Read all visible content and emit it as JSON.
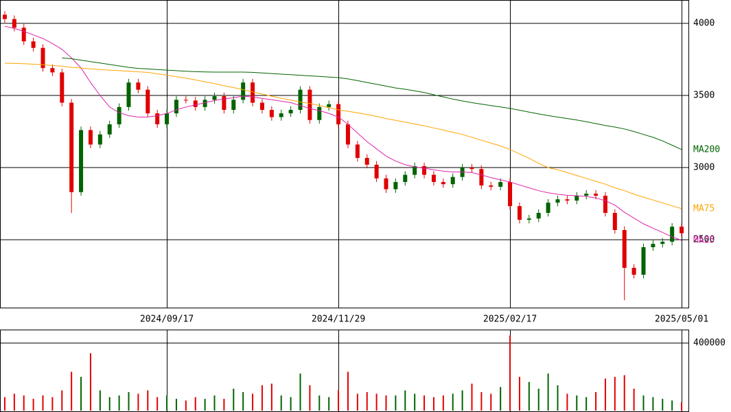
{
  "chart_data": {
    "type": "candlestick",
    "categories": [
      null,
      null,
      null,
      null,
      null,
      null,
      null,
      null,
      null,
      null,
      null,
      null,
      null,
      null,
      null,
      null,
      null,
      "2024/09/17",
      null,
      null,
      null,
      null,
      null,
      null,
      null,
      null,
      null,
      null,
      null,
      null,
      null,
      null,
      null,
      null,
      null,
      "2024/11/29",
      null,
      null,
      null,
      null,
      null,
      null,
      null,
      null,
      null,
      null,
      null,
      null,
      null,
      null,
      null,
      null,
      null,
      "2025/02/17",
      null,
      null,
      null,
      null,
      null,
      null,
      null,
      null,
      null,
      null,
      null,
      null,
      null,
      null,
      null,
      null,
      null,
      "2025/05/01"
    ],
    "open": [
      4060,
      4030,
      3970,
      3875,
      3830,
      3690,
      3660,
      3450,
      2830,
      3260,
      3160,
      3230,
      3300,
      3420,
      3590,
      3540,
      3376,
      3300,
      3376,
      3470,
      3465,
      3420,
      3470,
      3495,
      3400,
      3470,
      3590,
      3450,
      3400,
      3350,
      3376,
      3400,
      3540,
      3330,
      3420,
      3440,
      3300,
      3160,
      3067,
      3020,
      2925,
      2850,
      2900,
      2950,
      3010,
      2950,
      2900,
      2885,
      2935,
      3000,
      2990,
      2876,
      2867,
      2900,
      2733,
      2638,
      2647,
      2686,
      2757,
      2780,
      2771,
      2805,
      2819,
      2805,
      2686,
      2567,
      2305,
      2257,
      2448,
      2471,
      2486,
      2590
    ],
    "high": [
      4085,
      4055,
      3995,
      3900,
      3855,
      3715,
      3685,
      3475,
      3285,
      3285,
      3255,
      3325,
      3445,
      3615,
      3615,
      3565,
      3401,
      3401,
      3495,
      3495,
      3490,
      3495,
      3520,
      3520,
      3495,
      3615,
      3615,
      3475,
      3425,
      3401,
      3425,
      3565,
      3565,
      3445,
      3465,
      3465,
      3325,
      3185,
      3092,
      3045,
      2950,
      2925,
      2975,
      3035,
      3035,
      2975,
      2925,
      2960,
      3025,
      3025,
      3015,
      2901,
      2925,
      2925,
      2758,
      2672,
      2711,
      2782,
      2805,
      2805,
      2830,
      2844,
      2844,
      2830,
      2711,
      2592,
      2330,
      2473,
      2496,
      2511,
      2615,
      2615
    ],
    "low": [
      4005,
      3945,
      3850,
      3805,
      3665,
      3635,
      3425,
      2685,
      2805,
      3135,
      3135,
      3205,
      3275,
      3395,
      3515,
      3351,
      3275,
      3275,
      3351,
      3445,
      3395,
      3395,
      3445,
      3375,
      3375,
      3445,
      3425,
      3375,
      3325,
      3325,
      3351,
      3375,
      3305,
      3305,
      3395,
      3275,
      3135,
      3042,
      2995,
      2900,
      2825,
      2825,
      2875,
      2925,
      2925,
      2875,
      2860,
      2860,
      2910,
      2965,
      2851,
      2842,
      2842,
      2708,
      2613,
      2613,
      2622,
      2661,
      2732,
      2746,
      2746,
      2780,
      2780,
      2661,
      2542,
      2080,
      2232,
      2232,
      2423,
      2446,
      2461,
      2520
    ],
    "close": [
      4030,
      3970,
      3875,
      3830,
      3690,
      3660,
      3450,
      2830,
      3260,
      3160,
      3230,
      3300,
      3420,
      3590,
      3540,
      3376,
      3300,
      3376,
      3470,
      3465,
      3420,
      3470,
      3495,
      3400,
      3470,
      3590,
      3450,
      3400,
      3350,
      3376,
      3400,
      3540,
      3330,
      3420,
      3440,
      3300,
      3160,
      3067,
      3020,
      2925,
      2850,
      2900,
      2950,
      3010,
      2950,
      2900,
      2885,
      2935,
      3000,
      2990,
      2876,
      2867,
      2900,
      2733,
      2638,
      2647,
      2686,
      2757,
      2780,
      2771,
      2805,
      2819,
      2805,
      2686,
      2567,
      2305,
      2257,
      2448,
      2471,
      2486,
      2590,
      2545
    ],
    "volume": [
      80000,
      100000,
      90000,
      70000,
      90000,
      80000,
      120000,
      230000,
      200000,
      340000,
      120000,
      80000,
      90000,
      110000,
      100000,
      120000,
      80000,
      90000,
      70000,
      60000,
      80000,
      70000,
      90000,
      70000,
      130000,
      110000,
      100000,
      150000,
      160000,
      90000,
      80000,
      220000,
      150000,
      90000,
      80000,
      120000,
      230000,
      100000,
      110000,
      100000,
      90000,
      90000,
      120000,
      100000,
      90000,
      80000,
      90000,
      100000,
      120000,
      160000,
      110000,
      100000,
      140000,
      445000,
      200000,
      170000,
      130000,
      220000,
      150000,
      100000,
      90000,
      80000,
      110000,
      190000,
      200000,
      210000,
      130000,
      90000,
      80000,
      70000,
      60000,
      50000
    ],
    "up_color": "#006400",
    "down_color": "#e00000",
    "ylim": [
      2029,
      4162
    ],
    "yticks": [
      2500,
      3000,
      3500,
      4000
    ],
    "volume_ylim": [
      0,
      480000
    ],
    "volume_yticks": [
      400000
    ],
    "series": [
      {
        "name": "MA25",
        "color": "#dd22aa",
        "values": [
          3980,
          3965,
          3945,
          3920,
          3895,
          3860,
          3820,
          3760,
          3690,
          3590,
          3500,
          3420,
          3380,
          3360,
          3350,
          3350,
          3360,
          3375,
          3400,
          3420,
          3435,
          3450,
          3465,
          3475,
          3485,
          3495,
          3490,
          3480,
          3470,
          3460,
          3450,
          3430,
          3410,
          3395,
          3376,
          3350,
          3300,
          3240,
          3180,
          3130,
          3080,
          3045,
          3020,
          3005,
          2995,
          2985,
          2975,
          2970,
          2970,
          2965,
          2950,
          2930,
          2915,
          2900,
          2880,
          2860,
          2840,
          2825,
          2815,
          2808,
          2805,
          2800,
          2790,
          2770,
          2740,
          2690,
          2650,
          2610,
          2580,
          2550,
          2520,
          2495
        ]
      },
      {
        "name": "MA75",
        "color": "#ffa500",
        "values": [
          3724,
          3722,
          3720,
          3717,
          3713,
          3708,
          3703,
          3695,
          3690,
          3685,
          3680,
          3676,
          3672,
          3668,
          3664,
          3660,
          3650,
          3640,
          3630,
          3620,
          3608,
          3595,
          3582,
          3568,
          3555,
          3540,
          3525,
          3510,
          3495,
          3480,
          3468,
          3455,
          3445,
          3430,
          3415,
          3400,
          3390,
          3380,
          3368,
          3355,
          3340,
          3328,
          3315,
          3302,
          3290,
          3275,
          3260,
          3245,
          3230,
          3210,
          3190,
          3170,
          3150,
          3125,
          3095,
          3065,
          3030,
          3000,
          2985,
          2965,
          2945,
          2925,
          2905,
          2885,
          2860,
          2840,
          2815,
          2795,
          2775,
          2755,
          2735,
          2715
        ]
      },
      {
        "name": "MA200",
        "color": "#006400",
        "values": [
          null,
          null,
          null,
          null,
          null,
          null,
          3760,
          3755,
          3745,
          3735,
          3725,
          3715,
          3705,
          3695,
          3688,
          3684,
          3680,
          3676,
          3672,
          3668,
          3665,
          3663,
          3662,
          3662,
          3662,
          3662,
          3660,
          3656,
          3652,
          3648,
          3644,
          3640,
          3636,
          3632,
          3628,
          3624,
          3615,
          3603,
          3590,
          3578,
          3565,
          3552,
          3543,
          3532,
          3520,
          3505,
          3490,
          3475,
          3462,
          3450,
          3440,
          3430,
          3420,
          3410,
          3398,
          3385,
          3372,
          3360,
          3350,
          3340,
          3330,
          3318,
          3305,
          3292,
          3281,
          3268,
          3250,
          3230,
          3210,
          3185,
          3155,
          3125
        ]
      }
    ]
  }
}
